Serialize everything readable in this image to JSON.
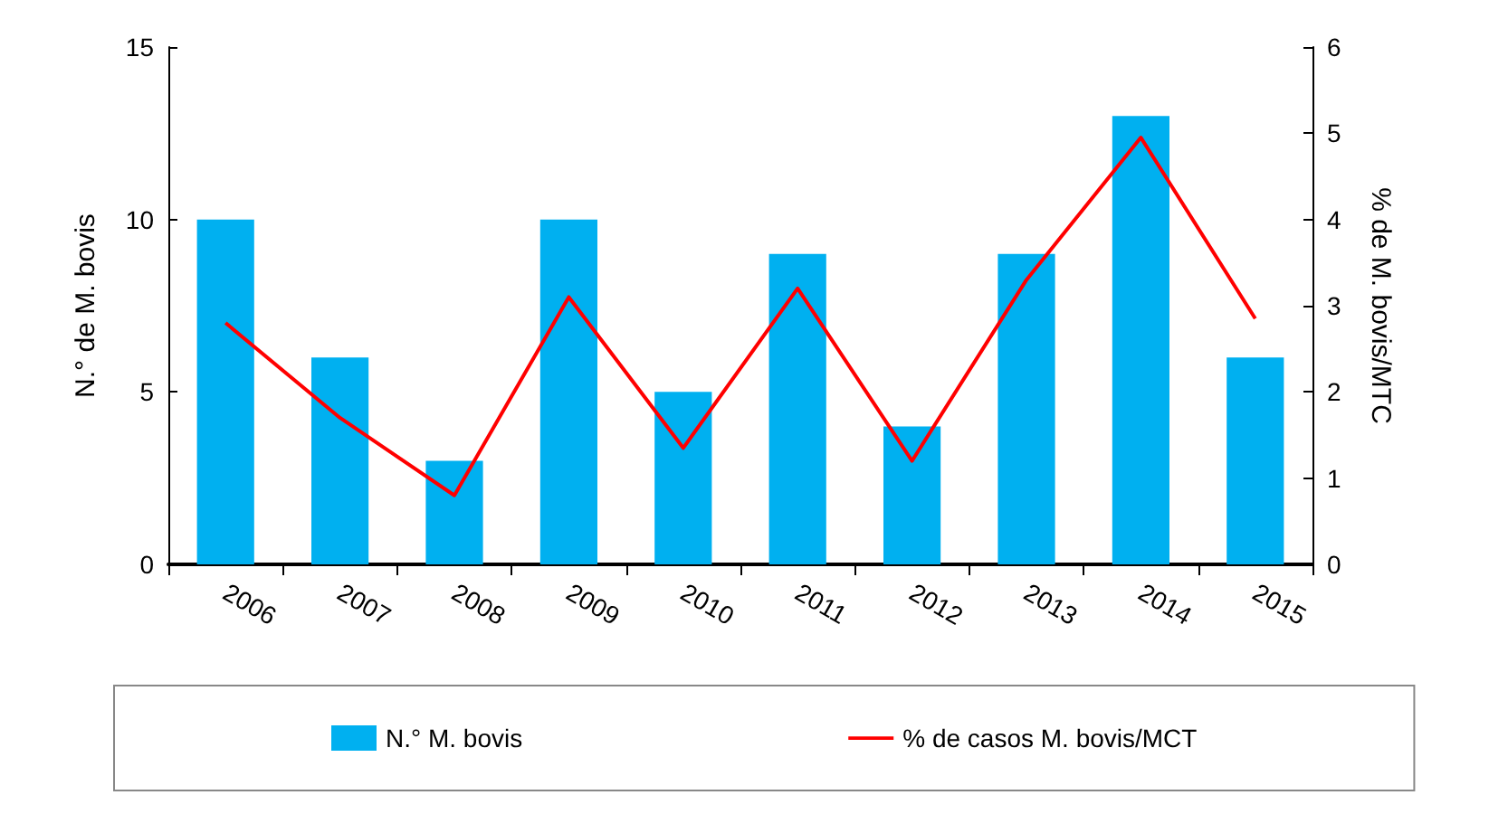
{
  "chart_data": {
    "type": "bar",
    "categories": [
      "2006",
      "2007",
      "2008",
      "2009",
      "2010",
      "2011",
      "2012",
      "2013",
      "2014",
      "2015"
    ],
    "ylabel": "N.° de M. bovis",
    "y2label": "% de M. bovis/MTC",
    "ylim": [
      0,
      15
    ],
    "yticks": [
      0,
      5,
      10,
      15
    ],
    "y2lim": [
      0,
      6
    ],
    "y2ticks": [
      0,
      1,
      2,
      3,
      4,
      5,
      6
    ],
    "series": [
      {
        "name": "N.° M. bovis",
        "color": "#00b0f0",
        "values": [
          10,
          6,
          3,
          10,
          5,
          9,
          4,
          9,
          13,
          6
        ]
      },
      {
        "name": "% de casos M. bovis/MCT",
        "type": "line",
        "axis": "y2",
        "color": "#ff0000",
        "values": [
          2.8,
          1.7,
          0.8,
          3.1,
          1.35,
          3.2,
          1.2,
          3.3,
          4.95,
          2.85
        ]
      }
    ],
    "grid": false,
    "legend": "bottom",
    "marker": "none"
  }
}
